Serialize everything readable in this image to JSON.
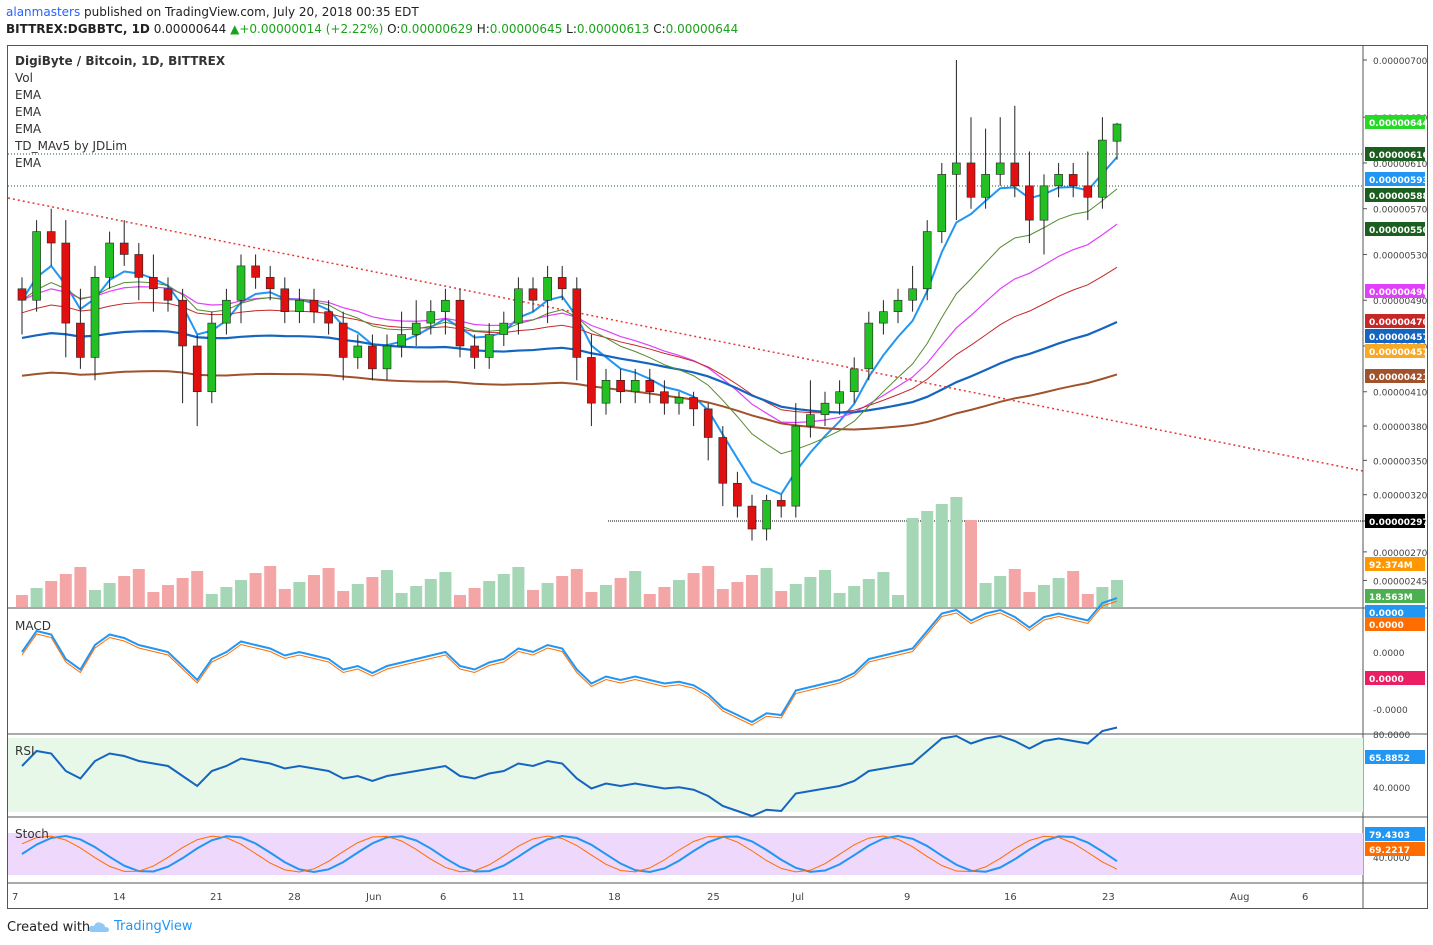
{
  "header": {
    "author": "alanmasters",
    "published_text": "published on TradingView.com, July 20, 2018 00:35 EDT",
    "symbol_line": "BITTREX:DGBBTC, 1D",
    "last": "0.00000644",
    "change": "+0.00000014 (+2.22%)",
    "o_label": "O:",
    "o": "0.00000629",
    "h_label": "H:",
    "h": "0.00000645",
    "l_label": "L:",
    "l": "0.00000613",
    "c_label": "C:",
    "c": "0.00000644"
  },
  "legend": {
    "title": "DigiByte / Bitcoin, 1D, BITTREX",
    "items": [
      "Vol",
      "EMA",
      "EMA",
      "EMA",
      "TD_MAv5 by JDLim",
      "EMA"
    ]
  },
  "panes": {
    "macd_label": "MACD",
    "rsi_label": "RSI",
    "stoch_label": "Stoch"
  },
  "footer": {
    "created_with": "Created with",
    "brand": "TradingView"
  },
  "chart_data": {
    "type": "candlestick",
    "title": "DigiByte / Bitcoin, 1D, BITTREX",
    "price_axis_ticks": [
      "0.00000700",
      "0.00000650",
      "0.00000610",
      "0.00000570",
      "0.00000530",
      "0.00000490",
      "0.00000450",
      "0.00000410",
      "0.00000380",
      "0.00000350",
      "0.00000320",
      "0.00000297",
      "0.00000270",
      "0.00000245"
    ],
    "price_badges": [
      {
        "label": "0.00000644",
        "color": "#26d926"
      },
      {
        "label": "0.00000616",
        "color": "#1b5e20"
      },
      {
        "label": "0.00000593",
        "color": "#2196f3"
      },
      {
        "label": "0.00000588",
        "color": "#1b5e20"
      },
      {
        "label": "0.00000550",
        "color": "#1b5e20"
      },
      {
        "label": "0.00000496",
        "color": "#e040fb"
      },
      {
        "label": "0.00000470",
        "color": "#c62828"
      },
      {
        "label": "0.00000457",
        "color": "#1565c0"
      },
      {
        "label": "0.00000457",
        "color": "#f9a825"
      },
      {
        "label": "0.00000421",
        "color": "#a0522d"
      },
      {
        "label": "0.00000297",
        "color": "#000000"
      }
    ],
    "volume_badges": [
      {
        "label": "92.374M",
        "color": "#ff9800"
      },
      {
        "label": "18.563M",
        "color": "#4caf50"
      }
    ],
    "macd_ticks": [
      "0.0000",
      "0.0000",
      "-0.0000"
    ],
    "macd_badges": [
      {
        "label": "0.0000",
        "color": "#2196f3"
      },
      {
        "label": "0.0000",
        "color": "#ff6d00"
      },
      {
        "label": "0.0000",
        "color": "#e91e63"
      }
    ],
    "rsi_ticks": [
      "80.0000",
      "40.0000"
    ],
    "rsi_badge": {
      "label": "65.8852",
      "color": "#2196f3"
    },
    "stoch_ticks": [
      "40.0000"
    ],
    "stoch_badges": [
      {
        "label": "79.4303",
        "color": "#2196f3"
      },
      {
        "label": "69.2217",
        "color": "#ff6d00"
      }
    ],
    "x_labels": [
      "7",
      "14",
      "21",
      "28",
      "Jun",
      "6",
      "11",
      "18",
      "25",
      "Jul",
      "9",
      "16",
      "23",
      "Aug",
      "6"
    ],
    "candles": [
      [
        500,
        510,
        460,
        490
      ],
      [
        490,
        560,
        480,
        550
      ],
      [
        550,
        570,
        520,
        540
      ],
      [
        540,
        560,
        440,
        470
      ],
      [
        470,
        500,
        430,
        440
      ],
      [
        440,
        520,
        420,
        510
      ],
      [
        510,
        550,
        500,
        540
      ],
      [
        540,
        560,
        520,
        530
      ],
      [
        530,
        540,
        490,
        510
      ],
      [
        510,
        530,
        480,
        500
      ],
      [
        500,
        510,
        480,
        490
      ],
      [
        490,
        500,
        400,
        450
      ],
      [
        450,
        460,
        380,
        410
      ],
      [
        410,
        480,
        400,
        470
      ],
      [
        470,
        500,
        460,
        490
      ],
      [
        490,
        530,
        470,
        520
      ],
      [
        520,
        530,
        500,
        510
      ],
      [
        510,
        520,
        490,
        500
      ],
      [
        500,
        510,
        470,
        480
      ],
      [
        480,
        500,
        470,
        490
      ],
      [
        490,
        500,
        470,
        480
      ],
      [
        480,
        490,
        460,
        470
      ],
      [
        470,
        480,
        420,
        440
      ],
      [
        440,
        460,
        430,
        450
      ],
      [
        450,
        460,
        420,
        430
      ],
      [
        430,
        460,
        420,
        450
      ],
      [
        450,
        480,
        440,
        460
      ],
      [
        460,
        490,
        450,
        470
      ],
      [
        470,
        490,
        460,
        480
      ],
      [
        480,
        500,
        460,
        490
      ],
      [
        490,
        500,
        440,
        450
      ],
      [
        450,
        460,
        430,
        440
      ],
      [
        440,
        470,
        430,
        460
      ],
      [
        460,
        480,
        450,
        470
      ],
      [
        470,
        510,
        460,
        500
      ],
      [
        500,
        510,
        480,
        490
      ],
      [
        490,
        520,
        470,
        510
      ],
      [
        510,
        520,
        490,
        500
      ],
      [
        500,
        510,
        420,
        440
      ],
      [
        440,
        460,
        380,
        400
      ],
      [
        400,
        430,
        390,
        420
      ],
      [
        420,
        430,
        400,
        410
      ],
      [
        410,
        430,
        400,
        420
      ],
      [
        420,
        430,
        400,
        410
      ],
      [
        410,
        420,
        390,
        400
      ],
      [
        400,
        410,
        390,
        405
      ],
      [
        405,
        410,
        380,
        395
      ],
      [
        395,
        400,
        350,
        370
      ],
      [
        370,
        380,
        310,
        330
      ],
      [
        330,
        340,
        300,
        310
      ],
      [
        310,
        320,
        280,
        290
      ],
      [
        290,
        320,
        280,
        315
      ],
      [
        315,
        320,
        300,
        310
      ],
      [
        310,
        400,
        300,
        380
      ],
      [
        380,
        420,
        370,
        390
      ],
      [
        390,
        410,
        380,
        400
      ],
      [
        400,
        420,
        390,
        410
      ],
      [
        410,
        440,
        400,
        430
      ],
      [
        430,
        480,
        420,
        470
      ],
      [
        470,
        490,
        460,
        480
      ],
      [
        480,
        500,
        470,
        490
      ],
      [
        490,
        520,
        480,
        500
      ],
      [
        500,
        560,
        490,
        550
      ],
      [
        550,
        610,
        540,
        600
      ],
      [
        600,
        700,
        560,
        610
      ],
      [
        610,
        650,
        570,
        580
      ],
      [
        580,
        640,
        570,
        600
      ],
      [
        600,
        650,
        590,
        610
      ],
      [
        610,
        660,
        580,
        590
      ],
      [
        590,
        620,
        540,
        560
      ],
      [
        560,
        600,
        530,
        590
      ],
      [
        590,
        610,
        580,
        600
      ],
      [
        600,
        610,
        580,
        590
      ],
      [
        590,
        620,
        560,
        580
      ],
      [
        580,
        650,
        570,
        630
      ],
      [
        629,
        645,
        613,
        644
      ]
    ]
  }
}
